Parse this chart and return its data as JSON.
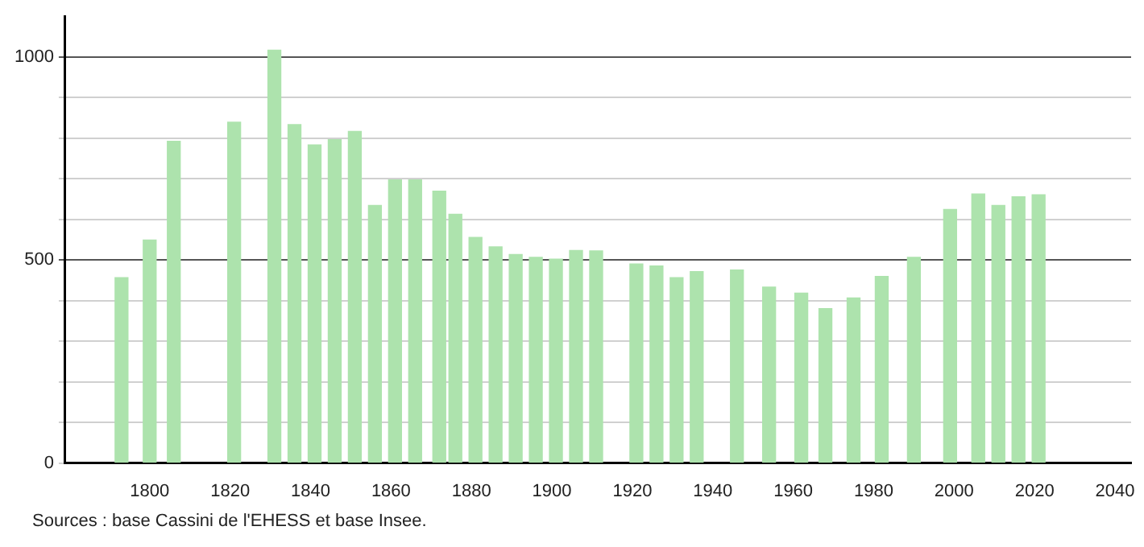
{
  "chart_data": {
    "type": "bar",
    "x": [
      1793,
      1800,
      1806,
      1821,
      1831,
      1836,
      1841,
      1846,
      1851,
      1856,
      1861,
      1866,
      1872,
      1876,
      1881,
      1886,
      1891,
      1896,
      1901,
      1906,
      1911,
      1921,
      1926,
      1931,
      1936,
      1946,
      1954,
      1962,
      1968,
      1975,
      1982,
      1990,
      1999,
      2006,
      2011,
      2016,
      2021
    ],
    "values": [
      456,
      549,
      792,
      839,
      1016,
      833,
      783,
      796,
      816,
      634,
      697,
      697,
      669,
      612,
      555,
      532,
      513,
      506,
      502,
      523,
      522,
      490,
      485,
      456,
      471,
      475,
      433,
      418,
      380,
      406,
      459,
      506,
      624,
      662,
      634,
      655,
      660
    ],
    "color": "#ade3ad",
    "xlim": [
      1779,
      2044
    ],
    "xticks": [
      1800,
      1820,
      1840,
      1860,
      1880,
      1900,
      1920,
      1940,
      1960,
      1980,
      2000,
      2020,
      2040
    ],
    "ylim": [
      0,
      1100
    ],
    "yticks": [
      0,
      {
        "value": 100,
        "label": null
      },
      {
        "value": 200,
        "label": null
      },
      {
        "value": 300,
        "label": null
      },
      {
        "value": 400,
        "label": null
      },
      500,
      {
        "value": 600,
        "label": null
      },
      {
        "value": 700,
        "label": null
      },
      {
        "value": 800,
        "label": null
      },
      {
        "value": 900,
        "label": null
      },
      1000
    ],
    "grid": "y",
    "legend": false,
    "annotations": [
      "Sources : base Cassini de l'EHESS et base Insee."
    ]
  }
}
